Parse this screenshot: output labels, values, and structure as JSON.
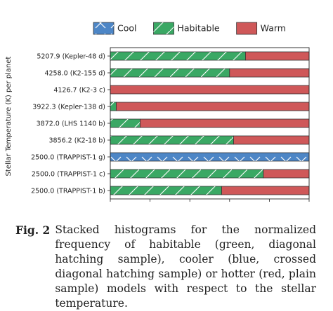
{
  "chart_data": {
    "type": "bar",
    "orientation": "horizontal",
    "stacked": true,
    "ylabel": "Stellar Temperature (K) per planet",
    "xlabel": "",
    "xlim": [
      0.0,
      1.0
    ],
    "xticks": [
      "0.0",
      "0.2",
      "0.4",
      "0.6",
      "0.8",
      "1.0"
    ],
    "grid": false,
    "legend_position": "top",
    "categories": [
      "5207.9 (Kepler-48 d)",
      "4258.0 (K2-155 d)",
      "4126.7 (K2-3 c)",
      "3922.3 (Kepler-138 d)",
      "3872.0 (LHS 1140 b)",
      "3856.2 (K2-18 b)",
      "2500.0 (TRAPPIST-1 g)",
      "2500.0 (TRAPPIST-1 c)",
      "2500.0 (TRAPPIST-1 b)"
    ],
    "series": [
      {
        "name": "Cool",
        "color": "#4d86c6",
        "hatch": "cross",
        "values": [
          0,
          0,
          0,
          0,
          0,
          0,
          1.0,
          0,
          0
        ]
      },
      {
        "name": "Habitable",
        "color": "#3aa864",
        "hatch": "diagonal",
        "values": [
          0.68,
          0.6,
          0,
          0.03,
          0.15,
          0.62,
          0,
          0.77,
          0.56
        ]
      },
      {
        "name": "Warm",
        "color": "#cf5859",
        "hatch": "none",
        "values": [
          0.32,
          0.4,
          1.0,
          0.97,
          0.85,
          0.38,
          0,
          0.23,
          0.44
        ]
      }
    ]
  },
  "caption": {
    "label": "Fig. 2",
    "text": "Stacked histograms for the normalized frequency of habitable (green, diagonal hatching sample), cooler (blue, crossed diagonal hatching sample) or hotter (red, plain sample) models with respect to the stellar temperature."
  }
}
